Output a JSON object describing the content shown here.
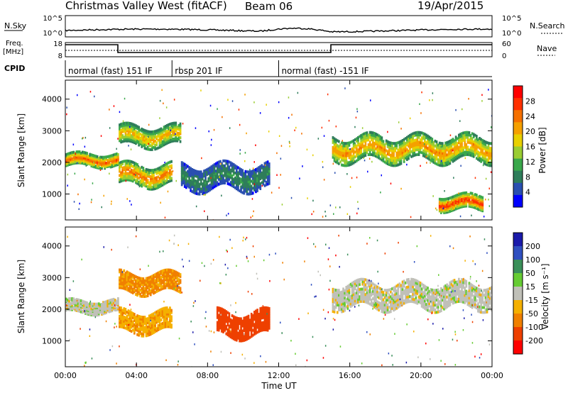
{
  "header": {
    "title": "Christmas Valley West (fitACF)",
    "beam": "Beam 06",
    "date": "19/Apr/2015"
  },
  "strips": {
    "nsky_label": "N.Sky",
    "nsky_ticks": [
      "10^5",
      "10^0"
    ],
    "nsearch_label": "N.Search",
    "freq_label": [
      "Freq.",
      "[MHz]"
    ],
    "freq_ticks": [
      "18",
      "8"
    ],
    "nave_ticks": [
      "60",
      "0"
    ],
    "nave_label": "Nave",
    "cpid_label": "CPID"
  },
  "cpid_segments": [
    {
      "start": 0,
      "end": 6,
      "label": "normal (fast) 151 IF"
    },
    {
      "start": 6,
      "end": 12,
      "label": "rbsp 201 IF"
    },
    {
      "start": 12,
      "end": 24,
      "label": "normal (fast) -151 IF"
    }
  ],
  "colors": {
    "power": [
      "#0000ff",
      "#2a4fb0",
      "#2e7d5a",
      "#3aa84b",
      "#9acd32",
      "#e8d000",
      "#f5a000",
      "#f57000",
      "#ff3000",
      "#ff0000"
    ],
    "velocity": [
      "#1a1aaa",
      "#2f4fc0",
      "#3a8f5a",
      "#66cc33",
      "#c0c0b8",
      "#f5b000",
      "#f08000",
      "#ee4000",
      "#ff0000"
    ]
  },
  "chart_data": [
    {
      "type": "heatmap",
      "panel": "power",
      "xlabel": "",
      "ylabel": "Slant Range [km]",
      "x_range_hours": [
        0,
        24
      ],
      "ylim": [
        180,
        4600
      ],
      "y_ticks": [
        "1000",
        "2000",
        "3000",
        "4000"
      ],
      "colorbar": {
        "label": "Power [dB]",
        "ticks": [
          "28",
          "24",
          "20",
          "16",
          "12",
          "8",
          "4"
        ]
      },
      "bands": [
        {
          "t": [
            0,
            3
          ],
          "range_km": [
            1800,
            2300
          ],
          "peak_db": 26
        },
        {
          "t": [
            3,
            6
          ],
          "range_km": [
            1150,
            2000
          ],
          "peak_db": 24
        },
        {
          "t": [
            3,
            6.5
          ],
          "range_km": [
            2400,
            3200
          ],
          "peak_db": 20
        },
        {
          "t": [
            6.5,
            11.5
          ],
          "range_km": [
            1000,
            2000
          ],
          "peak_db": 8
        },
        {
          "t": [
            15,
            24
          ],
          "range_km": [
            1900,
            2900
          ],
          "peak_db": 22
        },
        {
          "t": [
            21,
            23.5
          ],
          "range_km": [
            400,
            1000
          ],
          "peak_db": 28
        }
      ]
    },
    {
      "type": "heatmap",
      "panel": "velocity",
      "xlabel": "Time UT",
      "ylabel": "Slant Range [km]",
      "x_ticks": [
        "00:00",
        "04:00",
        "08:00",
        "12:00",
        "16:00",
        "20:00",
        "00:00"
      ],
      "ylim": [
        180,
        4600
      ],
      "y_ticks": [
        "1000",
        "2000",
        "3000",
        "4000"
      ],
      "colorbar": {
        "label": "Velocity [m s⁻¹]",
        "ticks": [
          "200",
          "100",
          "50",
          "15",
          "-15",
          "-50",
          "-100",
          "-200"
        ]
      },
      "bands": [
        {
          "t": [
            0,
            3
          ],
          "range_km": [
            1800,
            2300
          ],
          "velocity_ms": 0
        },
        {
          "t": [
            3,
            6
          ],
          "range_km": [
            1150,
            2000
          ],
          "velocity_ms": -40
        },
        {
          "t": [
            3,
            6.5
          ],
          "range_km": [
            2400,
            3200
          ],
          "velocity_ms": -60
        },
        {
          "t": [
            8.5,
            11.5
          ],
          "range_km": [
            1000,
            2000
          ],
          "velocity_ms": -120
        },
        {
          "t": [
            15,
            24
          ],
          "range_km": [
            1900,
            2900
          ],
          "velocity_ms": 0
        }
      ]
    }
  ]
}
